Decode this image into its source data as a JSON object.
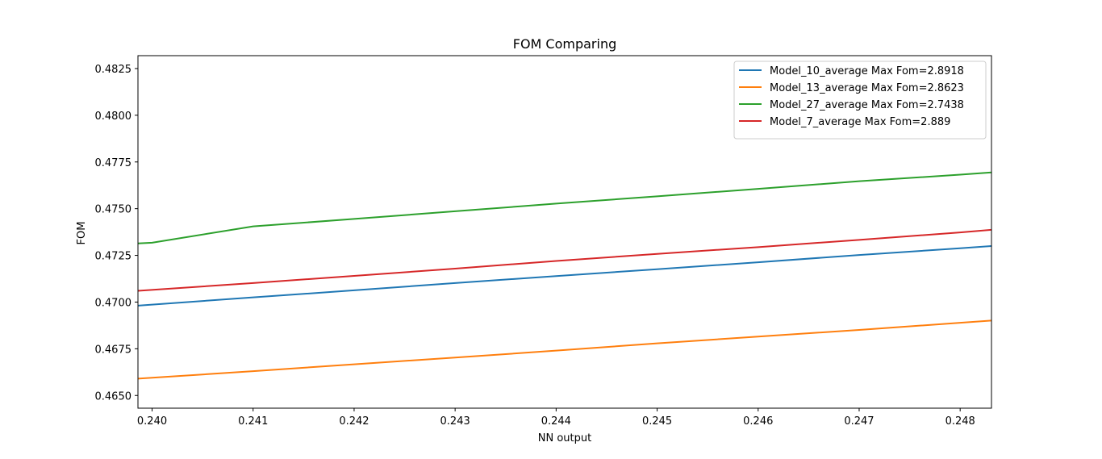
{
  "chart_data": {
    "type": "line",
    "title": "FOM Comparing",
    "xlabel": "NN output",
    "ylabel": "FOM",
    "xlim": [
      0.23986,
      0.24831
    ],
    "ylim": [
      0.46432,
      0.48319
    ],
    "xticks": [
      "0.240",
      "0.241",
      "0.242",
      "0.243",
      "0.244",
      "0.245",
      "0.246",
      "0.247",
      "0.248"
    ],
    "yticks": [
      "0.4650",
      "0.4675",
      "0.4700",
      "0.4725",
      "0.4750",
      "0.4775",
      "0.4800",
      "0.4825"
    ],
    "grid": false,
    "legend_position": "top-right",
    "series": [
      {
        "name": "Model_10_average  Max Fom=2.8918",
        "color": "#1f77b4",
        "x": [
          0.23986,
          0.241,
          0.242,
          0.243,
          0.244,
          0.245,
          0.246,
          0.247,
          0.248,
          0.24831
        ],
        "y": [
          0.46981,
          0.47025,
          0.47063,
          0.47102,
          0.47139,
          0.47176,
          0.47213,
          0.47252,
          0.47288,
          0.473
        ]
      },
      {
        "name": "Model_13_average  Max Fom=2.8623",
        "color": "#ff7f0e",
        "x": [
          0.23986,
          0.241,
          0.242,
          0.243,
          0.244,
          0.245,
          0.246,
          0.247,
          0.248,
          0.24831
        ],
        "y": [
          0.4659,
          0.4663,
          0.46667,
          0.46703,
          0.4674,
          0.46779,
          0.46815,
          0.46851,
          0.46889,
          0.46901
        ]
      },
      {
        "name": "Model_27_average  Max Fom=2.7438",
        "color": "#2ca02c",
        "x": [
          0.23986,
          0.24,
          0.241,
          0.242,
          0.243,
          0.244,
          0.245,
          0.246,
          0.247,
          0.248,
          0.24831
        ],
        "y": [
          0.47314,
          0.47318,
          0.47405,
          0.47445,
          0.47486,
          0.47527,
          0.47566,
          0.47606,
          0.47647,
          0.47682,
          0.47694
        ]
      },
      {
        "name": "Model_7_average  Max Fom=2.889",
        "color": "#d62728",
        "x": [
          0.23986,
          0.241,
          0.242,
          0.243,
          0.244,
          0.245,
          0.246,
          0.247,
          0.248,
          0.24831
        ],
        "y": [
          0.4706,
          0.47102,
          0.4714,
          0.47179,
          0.4722,
          0.47258,
          0.47294,
          0.47333,
          0.47373,
          0.47387
        ]
      }
    ]
  }
}
